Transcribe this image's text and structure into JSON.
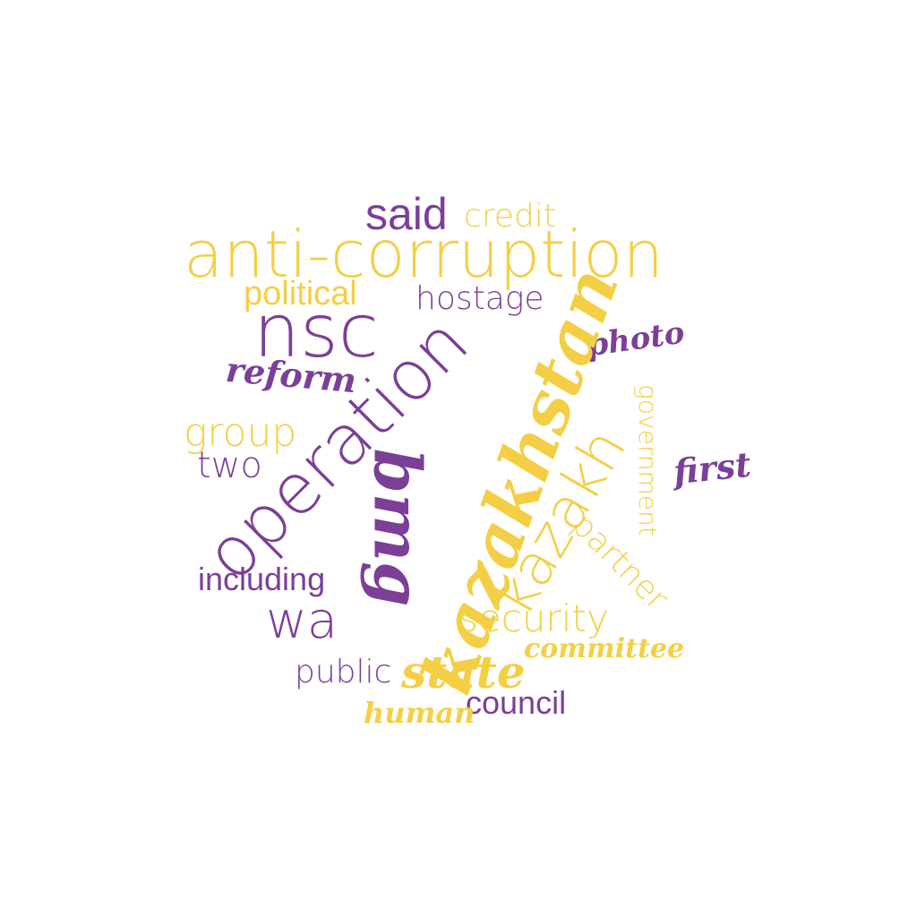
{
  "colors": {
    "purple": "#7b3f98",
    "yellow": "#f4cf45",
    "background": "#ffffff"
  },
  "words": {
    "anti_corruption": "anti-corruption",
    "said": "said",
    "credit": "credit",
    "political": "political",
    "hostage": "hostage",
    "nsc": "nsc",
    "photo": "photo",
    "reform": "reform",
    "operation": "operation",
    "kazakhstan": "kazakhstan",
    "government": "government",
    "group": "group",
    "two": "two",
    "kazakh": "kazakh",
    "first": "first",
    "bmg": "bmg",
    "partner": "partner",
    "including": "including",
    "wa": "wa",
    "security": "security",
    "committee": "committee",
    "public": "public",
    "state": "state",
    "council": "council",
    "human": "human"
  }
}
